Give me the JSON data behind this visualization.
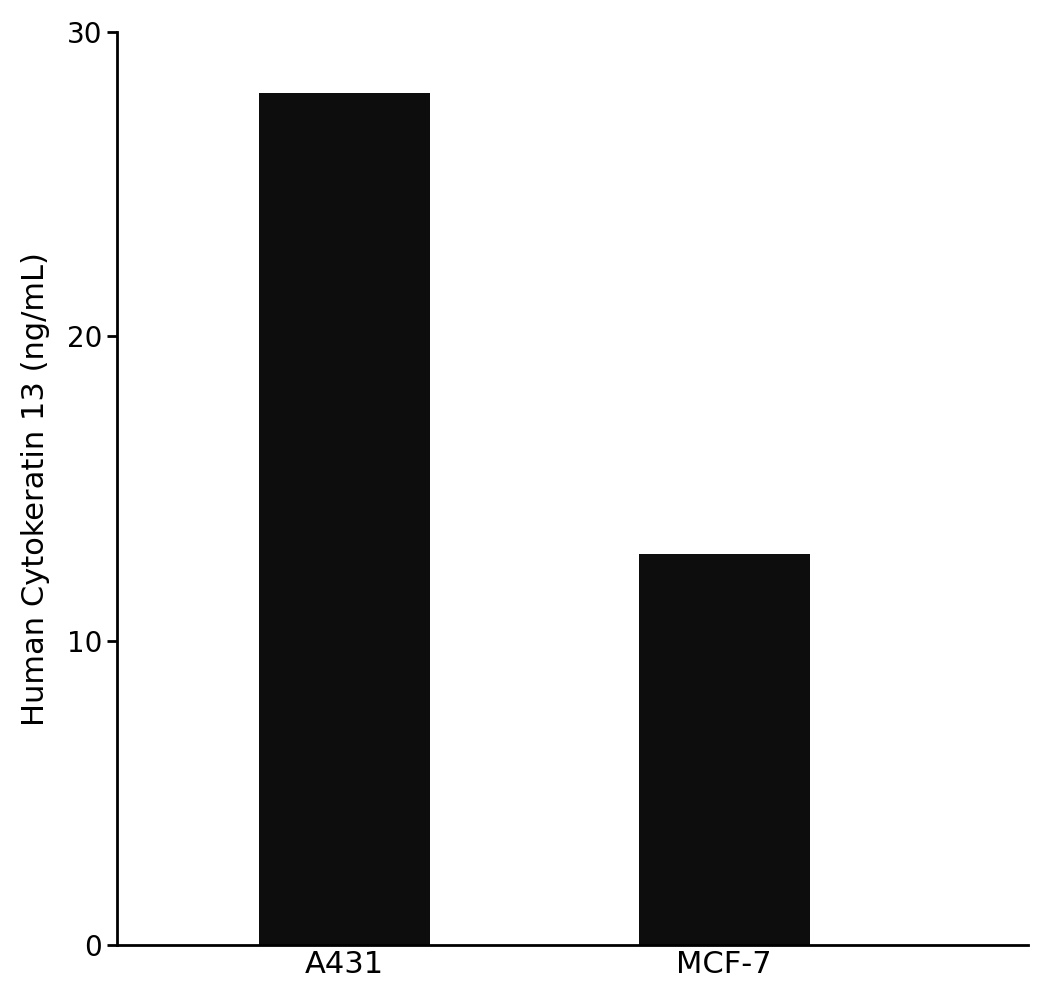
{
  "categories": [
    "A431",
    "MCF-7"
  ],
  "values": [
    28.0,
    12.84
  ],
  "bar_color": "#0d0d0d",
  "ylabel": "Human Cytokeratin 13 (ng/mL)",
  "ylim": [
    0,
    30
  ],
  "yticks": [
    0,
    10,
    20,
    30
  ],
  "bar_width": 0.45,
  "x_positions": [
    1,
    2
  ],
  "xlim": [
    0.4,
    2.8
  ],
  "background_color": "#ffffff",
  "ylabel_fontsize": 22,
  "tick_fontsize": 20,
  "xtick_fontsize": 22,
  "spine_linewidth": 2.0
}
